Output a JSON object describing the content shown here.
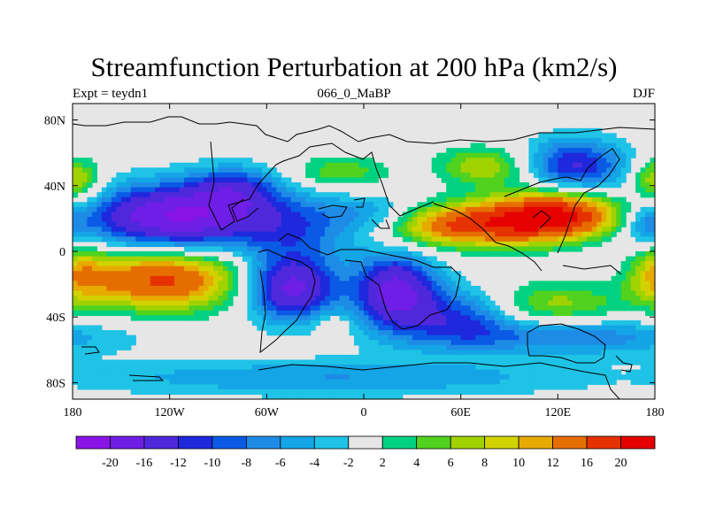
{
  "title": "Streamfunction Perturbation at 200 hPa (km2/s)",
  "subtitle_left": "Expt = teydn1",
  "subtitle_center": "066_0_MaBP",
  "subtitle_right": "DJF",
  "map": {
    "lon_range": [
      -180,
      180
    ],
    "lat_range": [
      -90,
      90
    ],
    "background_color": "#e6e6e6",
    "x_ticks": [
      {
        "value": -180,
        "label": "180"
      },
      {
        "value": -120,
        "label": "120W"
      },
      {
        "value": -60,
        "label": "60W"
      },
      {
        "value": 0,
        "label": "0"
      },
      {
        "value": 60,
        "label": "60E"
      },
      {
        "value": 120,
        "label": "120E"
      },
      {
        "value": 180,
        "label": "180"
      }
    ],
    "y_ticks": [
      {
        "value": 80,
        "label": "80N"
      },
      {
        "value": 40,
        "label": "40N"
      },
      {
        "value": 0,
        "label": "0"
      },
      {
        "value": -40,
        "label": "40S"
      },
      {
        "value": -80,
        "label": "80S"
      }
    ]
  },
  "colorbar": {
    "colors": [
      "#8a14e6",
      "#6e1ee6",
      "#5028dc",
      "#1e28dc",
      "#0a5ae6",
      "#1e8ce6",
      "#14a5e6",
      "#1ec3e6",
      "#e6e6e6",
      "#00d282",
      "#50d21e",
      "#a0d200",
      "#d2d200",
      "#e6aa00",
      "#e66e00",
      "#e63200",
      "#e60000"
    ],
    "labels": [
      "-20",
      "-16",
      "-12",
      "-10",
      "-8",
      "-6",
      "-4",
      "-2",
      "2",
      "4",
      "6",
      "8",
      "10",
      "12",
      "16",
      "20"
    ]
  },
  "field_centers": [
    {
      "lon": -118,
      "lat": 21,
      "amp": -20,
      "slon": 38,
      "slat": 14
    },
    {
      "lon": -80,
      "lat": 38,
      "amp": -9,
      "slon": 20,
      "slat": 10
    },
    {
      "lon": -40,
      "lat": 15,
      "amp": -8,
      "slon": 30,
      "slat": 14
    },
    {
      "lon": 10,
      "lat": 22,
      "amp": -6,
      "slon": 22,
      "slat": 8
    },
    {
      "lon": -45,
      "lat": -22,
      "amp": -18,
      "slon": 20,
      "slat": 14
    },
    {
      "lon": 20,
      "lat": -25,
      "amp": -18,
      "slon": 18,
      "slat": 16
    },
    {
      "lon": 60,
      "lat": -40,
      "amp": -9,
      "slon": 22,
      "slat": 12
    },
    {
      "lon": 130,
      "lat": 52,
      "amp": -12,
      "slon": 22,
      "slat": 12
    },
    {
      "lon": 125,
      "lat": -52,
      "amp": -8,
      "slon": 60,
      "slat": 8
    },
    {
      "lon": -20,
      "lat": -77,
      "amp": -6,
      "slon": 120,
      "slat": 8
    },
    {
      "lon": -125,
      "lat": -17,
      "amp": 17,
      "slon": 36,
      "slat": 13
    },
    {
      "lon": -178,
      "lat": -12,
      "amp": 8,
      "slon": 14,
      "slat": 14
    },
    {
      "lon": 60,
      "lat": 16,
      "amp": 16,
      "slon": 36,
      "slat": 9
    },
    {
      "lon": 122,
      "lat": 22,
      "amp": 22,
      "slon": 30,
      "slat": 11
    },
    {
      "lon": 75,
      "lat": 52,
      "amp": 8,
      "slon": 20,
      "slat": 8
    },
    {
      "lon": -15,
      "lat": 48,
      "amp": 6,
      "slon": 20,
      "slat": 7
    },
    {
      "lon": -175,
      "lat": 42,
      "amp": 6,
      "slon": 12,
      "slat": 10
    },
    {
      "lon": 178,
      "lat": 45,
      "amp": 5,
      "slon": 10,
      "slat": 8
    },
    {
      "lon": 120,
      "lat": -32,
      "amp": 7,
      "slon": 28,
      "slat": 10
    },
    {
      "lon": 155,
      "lat": 15,
      "amp": -3,
      "slon": 30,
      "slat": 25
    },
    {
      "lon": 175,
      "lat": 15,
      "amp": -6,
      "slon": 10,
      "slat": 8
    },
    {
      "lon": -20,
      "lat": -45,
      "amp": 4,
      "slon": 8,
      "slat": 5
    }
  ]
}
